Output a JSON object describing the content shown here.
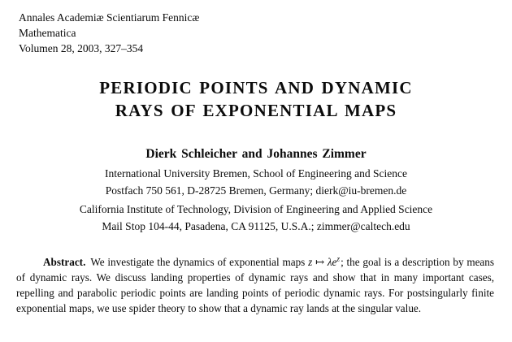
{
  "journal": {
    "line1": "Annales Academiæ Scientiarum Fennicæ",
    "line2": "Mathematica",
    "line3": "Volumen 28, 2003, 327–354"
  },
  "title": {
    "line1": "PERIODIC POINTS AND DYNAMIC",
    "line2": "RAYS OF EXPONENTIAL MAPS"
  },
  "authors": "Dierk Schleicher and Johannes Zimmer",
  "affiliations": [
    "International University Bremen, School of Engineering and Science",
    "Postfach 750 561, D-28725 Bremen, Germany; dierk@iu-bremen.de",
    "California Institute of Technology, Division of Engineering and Applied Science",
    "Mail Stop 104-44, Pasadena, CA 91125, U.S.A.; zimmer@caltech.edu"
  ],
  "abstract": {
    "label": "Abstract.",
    "text_before_formula": "We investigate the dynamics of exponential maps",
    "formula": {
      "variable": "z",
      "mapsto": "↦",
      "body": "λe",
      "superscript": "z"
    },
    "text_after_formula": "; the goal is a description by means of dynamic rays. We discuss landing properties of dynamic rays and show that in many important cases, repelling and parabolic periodic points are landing points of periodic dynamic rays. For postsingularly finite exponential maps, we use spider theory to show that a dynamic ray lands at the singular value."
  },
  "colors": {
    "text": "#0b0b0b",
    "background": "#ffffff"
  }
}
